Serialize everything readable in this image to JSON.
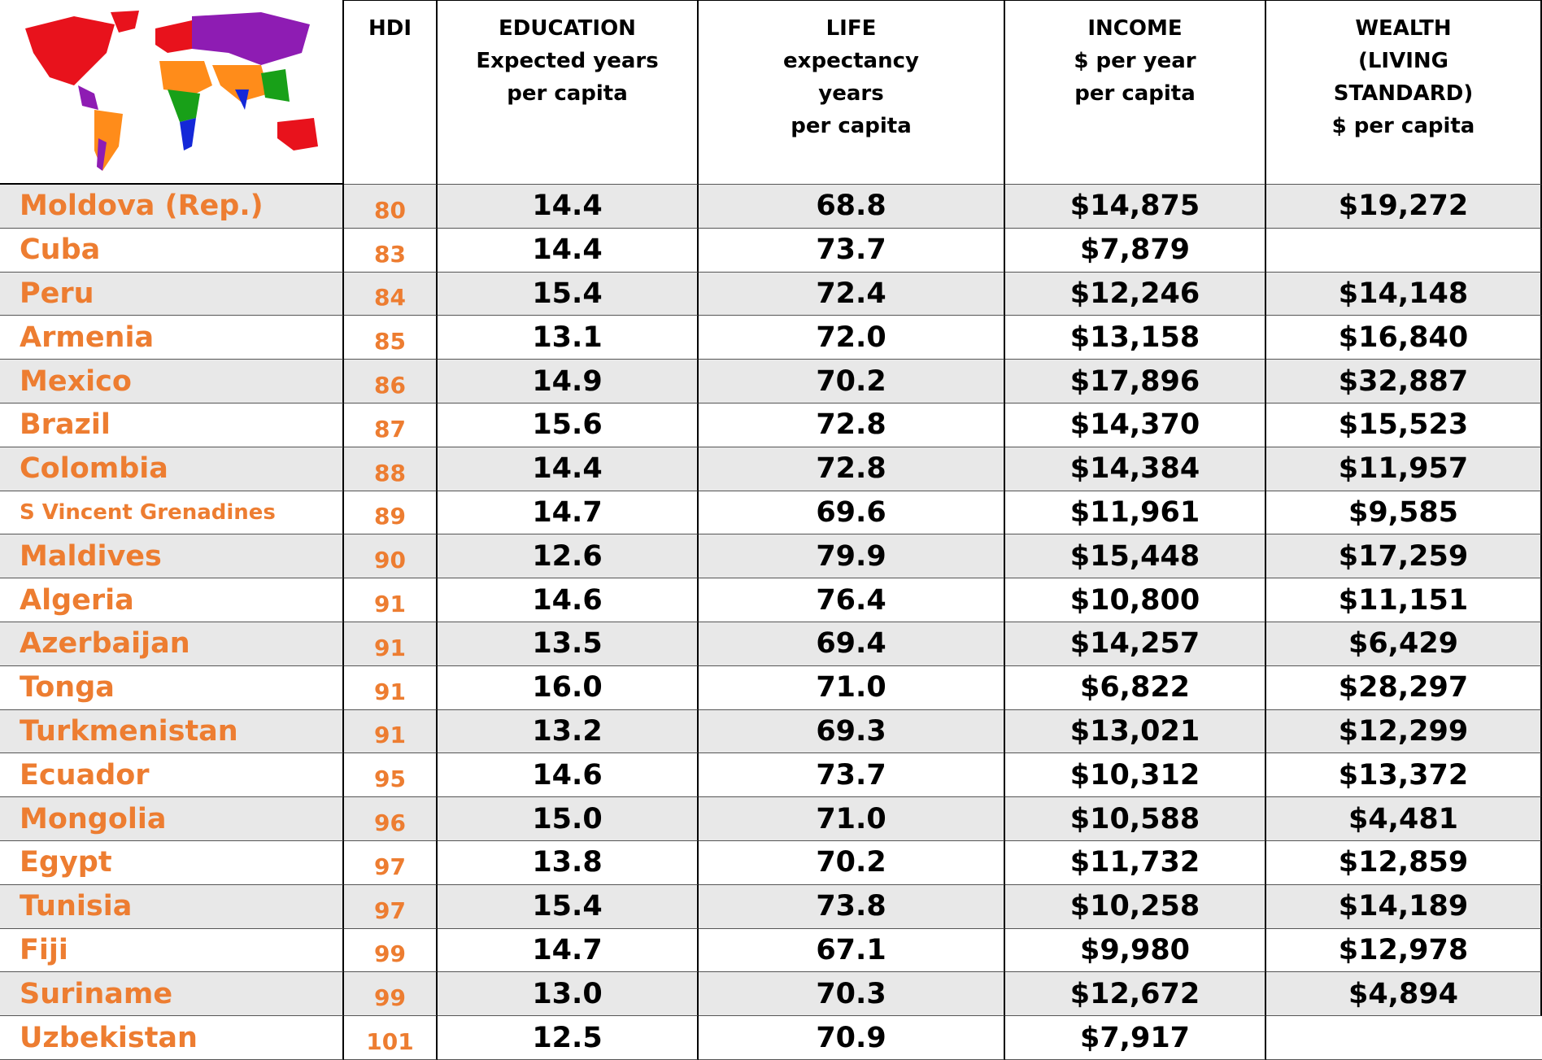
{
  "table": {
    "header": [
      [
        "HDI"
      ],
      [
        "EDUCATION",
        "Expected years",
        "per capita"
      ],
      [
        "LIFE",
        "expectancy",
        "years",
        "per capita"
      ],
      [
        "INCOME",
        "$ per year",
        "per capita"
      ],
      [
        "WEALTH",
        "(LIVING",
        "STANDARD)",
        "$ per capita"
      ]
    ],
    "rows": [
      [
        "Moldova (Rep.)",
        80,
        "14.4",
        "68.8",
        "$14,875",
        "$19,272"
      ],
      [
        "Cuba",
        83,
        "14.4",
        "73.7",
        "$7,879",
        null
      ],
      [
        "Peru",
        84,
        "15.4",
        "72.4",
        "$12,246",
        "$14,148"
      ],
      [
        "Armenia",
        85,
        "13.1",
        "72.0",
        "$13,158",
        "$16,840"
      ],
      [
        "Mexico",
        86,
        "14.9",
        "70.2",
        "$17,896",
        "$32,887"
      ],
      [
        "Brazil",
        87,
        "15.6",
        "72.8",
        "$14,370",
        "$15,523"
      ],
      [
        "Colombia",
        88,
        "14.4",
        "72.8",
        "$14,384",
        "$11,957"
      ],
      [
        "S Vincent Grenadines",
        89,
        "14.7",
        "69.6",
        "$11,961",
        "$9,585"
      ],
      [
        "Maldives",
        90,
        "12.6",
        "79.9",
        "$15,448",
        "$17,259"
      ],
      [
        "Algeria",
        91,
        "14.6",
        "76.4",
        "$10,800",
        "$11,151"
      ],
      [
        "Azerbaijan",
        91,
        "13.5",
        "69.4",
        "$14,257",
        "$6,429"
      ],
      [
        "Tonga",
        91,
        "16.0",
        "71.0",
        "$6,822",
        "$28,297"
      ],
      [
        "Turkmenistan",
        91,
        "13.2",
        "69.3",
        "$13,021",
        "$12,299"
      ],
      [
        "Ecuador",
        95,
        "14.6",
        "73.7",
        "$10,312",
        "$13,372"
      ],
      [
        "Mongolia",
        96,
        "15.0",
        "71.0",
        "$10,588",
        "$4,481"
      ],
      [
        "Egypt",
        97,
        "13.8",
        "70.2",
        "$11,732",
        "$12,859"
      ],
      [
        "Tunisia",
        97,
        "15.4",
        "73.8",
        "$10,258",
        "$14,189"
      ],
      [
        "Fiji",
        99,
        "14.7",
        "67.1",
        "$9,980",
        "$12,978"
      ],
      [
        "Suriname",
        99,
        "13.0",
        "70.3",
        "$12,672",
        "$4,894"
      ],
      [
        "Uzbekistan",
        101,
        "12.5",
        "70.9",
        "$7,917",
        null
      ]
    ]
  }
}
